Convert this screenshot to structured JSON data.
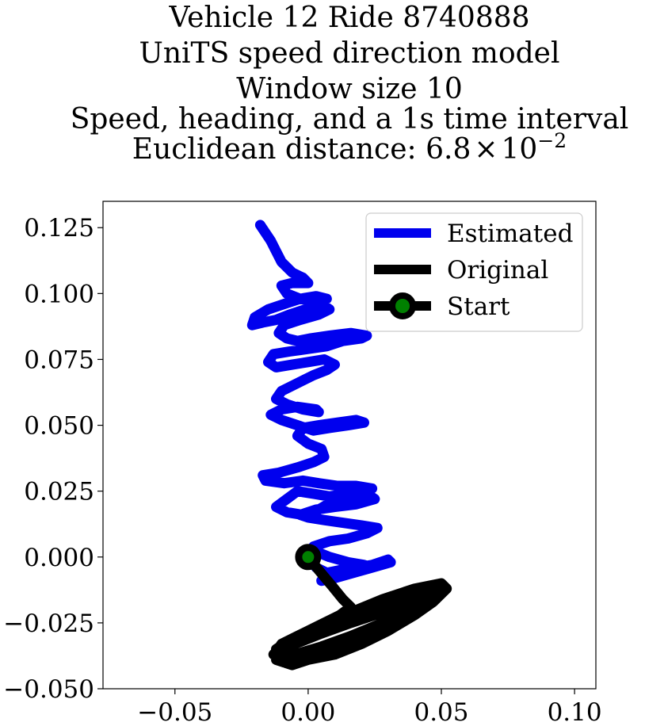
{
  "chart_data": {
    "type": "line",
    "title_lines": [
      "Vehicle 12 Ride 8740888",
      "UniTS speed direction model",
      "Window size 10",
      "Speed, heading, and a 1s time interval"
    ],
    "title_distance_prefix": "Euclidean distance: ",
    "title_distance_mantissa": "6.8",
    "title_distance_times": "×",
    "title_distance_base": "10",
    "title_distance_exponent": "−2",
    "xlabel": "",
    "ylabel": "",
    "xlim": [
      -0.077,
      0.108
    ],
    "ylim": [
      -0.05,
      0.135
    ],
    "x_ticks": [
      {
        "value": -0.05,
        "label": "−0.05"
      },
      {
        "value": 0.0,
        "label": "0.00"
      },
      {
        "value": 0.05,
        "label": "0.05"
      },
      {
        "value": 0.1,
        "label": "0.10"
      }
    ],
    "y_ticks": [
      {
        "value": -0.05,
        "label": "−0.050"
      },
      {
        "value": -0.025,
        "label": "−0.025"
      },
      {
        "value": 0.0,
        "label": "0.000"
      },
      {
        "value": 0.025,
        "label": "0.025"
      },
      {
        "value": 0.05,
        "label": "0.050"
      },
      {
        "value": 0.075,
        "label": "0.075"
      },
      {
        "value": 0.1,
        "label": "0.100"
      },
      {
        "value": 0.125,
        "label": "0.125"
      }
    ],
    "grid": false,
    "legend_position": "top-right",
    "series": [
      {
        "name": "Estimated",
        "color": "#0000ee",
        "points": [
          [
            0.0,
            0.0
          ],
          [
            0.003,
            -0.004
          ],
          [
            0.007,
            -0.006
          ],
          [
            0.012,
            -0.005
          ],
          [
            0.018,
            -0.004
          ],
          [
            0.024,
            -0.003
          ],
          [
            0.03,
            -0.001
          ],
          [
            0.031,
            -0.002
          ],
          [
            0.024,
            -0.004
          ],
          [
            0.017,
            -0.006
          ],
          [
            0.01,
            -0.008
          ],
          [
            0.005,
            -0.009
          ],
          [
            0.008,
            -0.007
          ],
          [
            0.014,
            -0.005
          ],
          [
            0.02,
            -0.004
          ],
          [
            0.021,
            -0.003
          ],
          [
            0.015,
            -0.002
          ],
          [
            0.008,
            0.0
          ],
          [
            0.003,
            0.002
          ],
          [
            0.002,
            0.004
          ],
          [
            0.008,
            0.006
          ],
          [
            0.015,
            0.007
          ],
          [
            0.022,
            0.009
          ],
          [
            0.026,
            0.011
          ],
          [
            0.02,
            0.012
          ],
          [
            0.013,
            0.013
          ],
          [
            0.006,
            0.014
          ],
          [
            0.0,
            0.015
          ],
          [
            -0.003,
            0.016
          ],
          [
            0.003,
            0.018
          ],
          [
            0.01,
            0.019
          ],
          [
            0.018,
            0.02
          ],
          [
            0.025,
            0.022
          ],
          [
            0.022,
            0.024
          ],
          [
            0.015,
            0.023
          ],
          [
            0.009,
            0.021
          ],
          [
            0.004,
            0.018
          ],
          [
            -0.002,
            0.016
          ],
          [
            -0.008,
            0.017
          ],
          [
            -0.012,
            0.019
          ],
          [
            -0.008,
            0.022
          ],
          [
            -0.004,
            0.025
          ],
          [
            0.002,
            0.024
          ],
          [
            0.008,
            0.023
          ],
          [
            0.015,
            0.024
          ],
          [
            0.022,
            0.025
          ],
          [
            0.024,
            0.026
          ],
          [
            0.018,
            0.027
          ],
          [
            0.011,
            0.027
          ],
          [
            0.004,
            0.028
          ],
          [
            -0.002,
            0.029
          ],
          [
            -0.009,
            0.028
          ],
          [
            -0.016,
            0.029
          ],
          [
            -0.017,
            0.031
          ],
          [
            -0.011,
            0.032
          ],
          [
            -0.004,
            0.034
          ],
          [
            0.002,
            0.036
          ],
          [
            0.006,
            0.038
          ],
          [
            0.005,
            0.041
          ],
          [
            0.0,
            0.043
          ],
          [
            -0.004,
            0.046
          ],
          [
            -0.002,
            0.049
          ],
          [
            0.004,
            0.05
          ],
          [
            0.011,
            0.051
          ],
          [
            0.018,
            0.052
          ],
          [
            0.021,
            0.051
          ],
          [
            0.015,
            0.05
          ],
          [
            0.008,
            0.049
          ],
          [
            0.002,
            0.048
          ],
          [
            -0.004,
            0.05
          ],
          [
            -0.01,
            0.052
          ],
          [
            -0.014,
            0.054
          ],
          [
            -0.01,
            0.056
          ],
          [
            -0.004,
            0.057
          ],
          [
            0.003,
            0.056
          ],
          [
            0.004,
            0.055
          ],
          [
            -0.002,
            0.056
          ],
          [
            -0.008,
            0.058
          ],
          [
            -0.012,
            0.06
          ],
          [
            -0.01,
            0.063
          ],
          [
            -0.004,
            0.066
          ],
          [
            0.002,
            0.069
          ],
          [
            0.007,
            0.071
          ],
          [
            0.01,
            0.073
          ],
          [
            0.006,
            0.075
          ],
          [
            0.0,
            0.074
          ],
          [
            -0.006,
            0.073
          ],
          [
            -0.012,
            0.072
          ],
          [
            -0.015,
            0.074
          ],
          [
            -0.013,
            0.077
          ],
          [
            -0.007,
            0.078
          ],
          [
            0.0,
            0.079
          ],
          [
            0.007,
            0.08
          ],
          [
            0.013,
            0.082
          ],
          [
            0.02,
            0.083
          ],
          [
            0.022,
            0.084
          ],
          [
            0.016,
            0.085
          ],
          [
            0.008,
            0.084
          ],
          [
            0.001,
            0.083
          ],
          [
            -0.004,
            0.082
          ],
          [
            -0.008,
            0.083
          ],
          [
            -0.011,
            0.085
          ],
          [
            -0.009,
            0.088
          ],
          [
            -0.003,
            0.09
          ],
          [
            0.004,
            0.092
          ],
          [
            0.008,
            0.094
          ],
          [
            0.005,
            0.096
          ],
          [
            -0.001,
            0.094
          ],
          [
            -0.007,
            0.092
          ],
          [
            -0.012,
            0.09
          ],
          [
            -0.017,
            0.089
          ],
          [
            -0.021,
            0.088
          ],
          [
            -0.02,
            0.091
          ],
          [
            -0.015,
            0.094
          ],
          [
            -0.009,
            0.096
          ],
          [
            -0.003,
            0.098
          ],
          [
            0.003,
            0.099
          ],
          [
            0.007,
            0.098
          ],
          [
            0.003,
            0.097
          ],
          [
            -0.003,
            0.098
          ],
          [
            -0.008,
            0.1
          ],
          [
            -0.01,
            0.103
          ],
          [
            -0.006,
            0.104
          ],
          [
            0.0,
            0.104
          ],
          [
            -0.002,
            0.106
          ],
          [
            -0.006,
            0.108
          ],
          [
            -0.01,
            0.112
          ],
          [
            -0.012,
            0.116
          ],
          [
            -0.014,
            0.12
          ],
          [
            -0.016,
            0.123
          ],
          [
            -0.018,
            0.126
          ]
        ]
      },
      {
        "name": "Original",
        "color": "#000000",
        "points": [
          [
            0.0,
            0.0
          ],
          [
            0.004,
            -0.005
          ],
          [
            0.009,
            -0.011
          ],
          [
            0.013,
            -0.016
          ],
          [
            0.016,
            -0.019
          ],
          [
            0.012,
            -0.022
          ],
          [
            0.004,
            -0.026
          ],
          [
            -0.004,
            -0.03
          ],
          [
            -0.01,
            -0.033
          ],
          [
            -0.012,
            -0.036
          ],
          [
            -0.008,
            -0.038
          ],
          [
            0.0,
            -0.039
          ],
          [
            0.01,
            -0.037
          ],
          [
            0.02,
            -0.033
          ],
          [
            0.03,
            -0.028
          ],
          [
            0.04,
            -0.022
          ],
          [
            0.047,
            -0.017
          ],
          [
            0.052,
            -0.012
          ],
          [
            0.05,
            -0.01
          ],
          [
            0.04,
            -0.012
          ],
          [
            0.028,
            -0.016
          ],
          [
            0.016,
            -0.021
          ],
          [
            0.004,
            -0.026
          ],
          [
            -0.006,
            -0.031
          ],
          [
            -0.012,
            -0.035
          ],
          [
            -0.012,
            -0.039
          ],
          [
            -0.006,
            -0.041
          ],
          [
            0.003,
            -0.038
          ],
          [
            0.013,
            -0.034
          ],
          [
            0.024,
            -0.029
          ],
          [
            0.035,
            -0.024
          ],
          [
            0.044,
            -0.019
          ],
          [
            0.05,
            -0.014
          ],
          [
            0.046,
            -0.013
          ],
          [
            0.035,
            -0.016
          ],
          [
            0.023,
            -0.02
          ],
          [
            0.011,
            -0.025
          ],
          [
            0.0,
            -0.029
          ],
          [
            -0.009,
            -0.033
          ],
          [
            -0.013,
            -0.037
          ],
          [
            -0.009,
            -0.04
          ],
          [
            -0.001,
            -0.039
          ],
          [
            0.009,
            -0.035
          ],
          [
            0.02,
            -0.031
          ],
          [
            0.031,
            -0.026
          ],
          [
            0.041,
            -0.021
          ],
          [
            0.048,
            -0.016
          ],
          [
            0.044,
            -0.015
          ],
          [
            0.033,
            -0.018
          ],
          [
            0.02,
            -0.022
          ],
          [
            0.008,
            -0.026
          ],
          [
            -0.003,
            -0.031
          ],
          [
            -0.011,
            -0.035
          ],
          [
            -0.012,
            -0.038
          ],
          [
            -0.005,
            -0.037
          ],
          [
            0.005,
            -0.034
          ],
          [
            0.016,
            -0.03
          ],
          [
            0.028,
            -0.025
          ],
          [
            0.038,
            -0.021
          ],
          [
            0.045,
            -0.018
          ],
          [
            0.04,
            -0.018
          ],
          [
            0.028,
            -0.021
          ],
          [
            0.016,
            -0.025
          ],
          [
            0.005,
            -0.029
          ],
          [
            -0.005,
            -0.033
          ],
          [
            -0.01,
            -0.036
          ]
        ]
      }
    ],
    "start": {
      "name": "Start",
      "point": [
        0.0,
        0.0
      ],
      "marker_fill": "#008000",
      "marker_edge": "#000000"
    }
  }
}
